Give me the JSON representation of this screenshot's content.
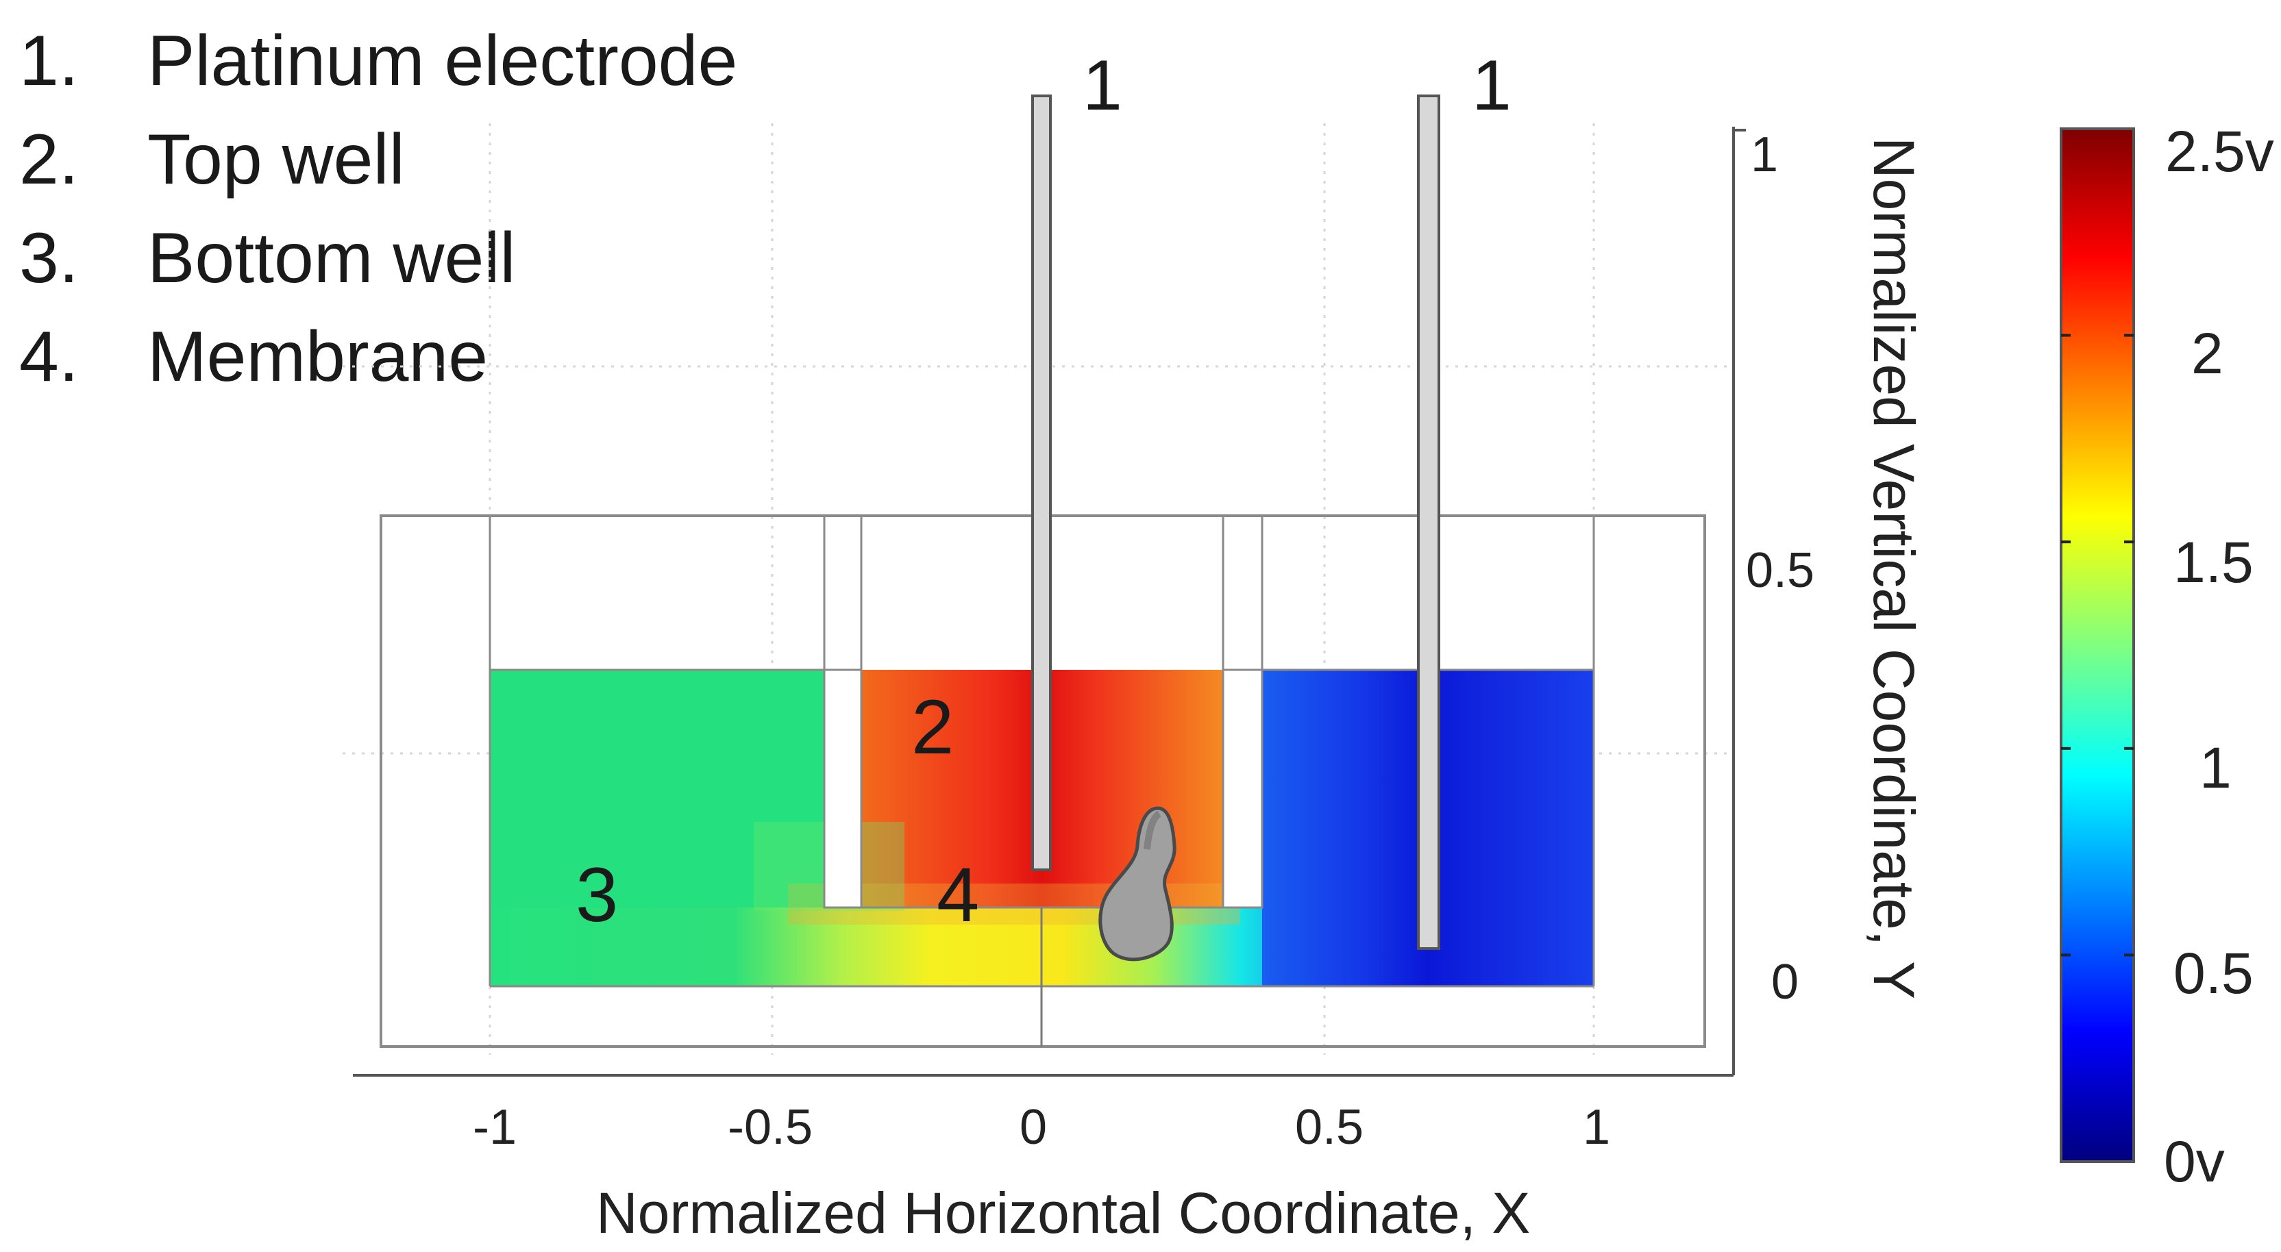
{
  "legend": {
    "items": [
      {
        "num": "1.",
        "label": "Platinum electrode"
      },
      {
        "num": "2.",
        "label": "Top well"
      },
      {
        "num": "3.",
        "label": "Bottom well"
      },
      {
        "num": "4.",
        "label": "Membrane"
      }
    ]
  },
  "x_axis": {
    "title": "Normalized Horizontal Coordinate, X",
    "ticks": [
      "-1",
      "-0.5",
      "0",
      "0.5",
      "1"
    ]
  },
  "y_axis": {
    "title": "Normalized Vertical Coordinate, Y",
    "ticks": [
      "1",
      "0.5",
      "0"
    ]
  },
  "regions": {
    "electrode_left": "1",
    "electrode_right": "1",
    "top_well": "2",
    "bottom_well": "3",
    "membrane": "4"
  },
  "colorbar": {
    "ticks": [
      "2.5v",
      "2",
      "1.5",
      "1",
      "0.5",
      "0v"
    ],
    "colors": [
      "#7f0000",
      "#ff0000",
      "#ff8000",
      "#ffff00",
      "#80ff80",
      "#00ffff",
      "#0080ff",
      "#0000ff",
      "#00007f"
    ]
  },
  "colors": {
    "bottom_well_left": "#22e07f",
    "top_well": "#f5761f",
    "right_region": "#1630e8",
    "electrode": "#d8d8d8",
    "membrane_blob": "#9a9a9a"
  }
}
